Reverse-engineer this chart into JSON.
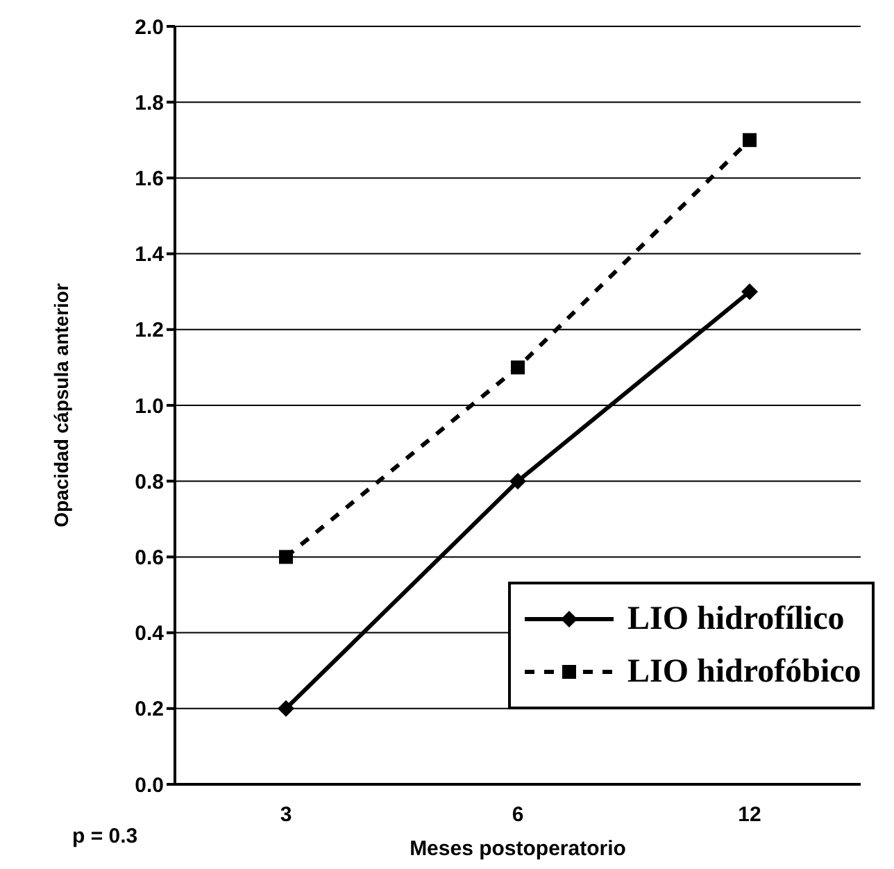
{
  "chart_data": {
    "type": "line",
    "xlabel": "Meses postoperatorio",
    "ylabel": "Opacidad cápsula anterior",
    "annotations": [
      "p = 0.3"
    ],
    "categories": [
      "3",
      "6",
      "12"
    ],
    "series": [
      {
        "name": "LIO hidrofílico",
        "color": "#000000",
        "values": [
          0.2,
          0.8,
          1.3
        ],
        "marker": "diamond",
        "line_style": "solid"
      },
      {
        "name": "LIO hidrofóbico",
        "color": "#000000",
        "values": [
          0.6,
          1.1,
          1.7
        ],
        "marker": "square",
        "line_style": "dashed"
      }
    ],
    "ylim": [
      0,
      2
    ],
    "yticks": [
      {
        "value": 0,
        "label": "0.0"
      },
      {
        "value": 0.2,
        "label": "0.2"
      },
      {
        "value": 0.4,
        "label": "0.4"
      },
      {
        "value": 0.6,
        "label": "0.6"
      },
      {
        "value": 0.8,
        "label": "0.8"
      },
      {
        "value": 1,
        "label": "1.0"
      },
      {
        "value": 1.2,
        "label": "1.2"
      },
      {
        "value": 1.4,
        "label": "1.4"
      },
      {
        "value": 1.6,
        "label": "1.6"
      },
      {
        "value": 1.8,
        "label": "1.8"
      },
      {
        "value": 2,
        "label": "2.0"
      }
    ],
    "grid": "y",
    "legend": "right"
  }
}
